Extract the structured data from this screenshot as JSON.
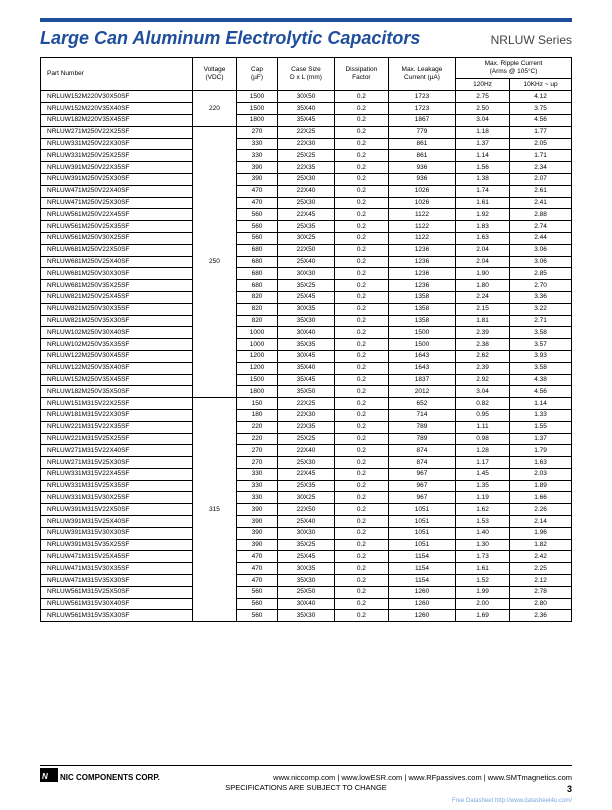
{
  "header": {
    "title": "Large Can Aluminum Electrolytic Capacitors",
    "series": "NRLUW Series"
  },
  "table": {
    "headers": {
      "part": "Part Number",
      "volt": "Voltage\n(VDC)",
      "cap": "Cap\n(µF)",
      "case": "Case Size\nD x L (mm)",
      "df": "Dissipation\nFactor",
      "leak": "Max. Leakage\nCurrent (µA)",
      "ripple": "Max. Ripple Current\n(Arms @ 105°C)",
      "r1": "120Hz",
      "r2": "10KHz ~ up"
    },
    "groups": [
      {
        "voltage": "220",
        "rows": [
          [
            "NRLUW152M220V30X50SF",
            "1500",
            "30X50",
            "0.2",
            "1723",
            "2.75",
            "4.12"
          ],
          [
            "NRLUW152M220V35X40SF",
            "1500",
            "35X40",
            "0.2",
            "1723",
            "2.50",
            "3.75"
          ],
          [
            "NRLUW182M220V35X45SF",
            "1800",
            "35X45",
            "0.2",
            "1867",
            "3.04",
            "4.56"
          ]
        ]
      },
      {
        "voltage": "250",
        "rows": [
          [
            "NRLUW271M250V22X25SF",
            "270",
            "22X25",
            "0.2",
            "779",
            "1.18",
            "1.77"
          ],
          [
            "NRLUW331M250V22X30SF",
            "330",
            "22X30",
            "0.2",
            "861",
            "1.37",
            "2.05"
          ],
          [
            "NRLUW331M250V25X25SF",
            "330",
            "25X25",
            "0.2",
            "861",
            "1.14",
            "1.71"
          ],
          [
            "NRLUW391M250V22X35SF",
            "390",
            "22X35",
            "0.2",
            "936",
            "1.56",
            "2.34"
          ],
          [
            "NRLUW391M250V25X30SF",
            "390",
            "25X30",
            "0.2",
            "936",
            "1.38",
            "2.07"
          ],
          [
            "NRLUW471M250V22X40SF",
            "470",
            "22X40",
            "0.2",
            "1026",
            "1.74",
            "2.61"
          ],
          [
            "NRLUW471M250V25X30SF",
            "470",
            "25X30",
            "0.2",
            "1026",
            "1.61",
            "2.41"
          ],
          [
            "NRLUW561M250V22X45SF",
            "560",
            "22X45",
            "0.2",
            "1122",
            "1.92",
            "2.88"
          ],
          [
            "NRLUW561M250V25X35SF",
            "560",
            "25X35",
            "0.2",
            "1122",
            "1.83",
            "2.74"
          ],
          [
            "NRLUW561M250V30X25SF",
            "560",
            "30X25",
            "0.2",
            "1122",
            "1.63",
            "2.44"
          ],
          [
            "NRLUW681M250V22X50SF",
            "680",
            "22X50",
            "0.2",
            "1236",
            "2.04",
            "3.06"
          ],
          [
            "NRLUW681M250V25X40SF",
            "680",
            "25X40",
            "0.2",
            "1236",
            "2.04",
            "3.06"
          ],
          [
            "NRLUW681M250V30X30SF",
            "680",
            "30X30",
            "0.2",
            "1236",
            "1.90",
            "2.85"
          ],
          [
            "NRLUW681M250V35X25SF",
            "680",
            "35X25",
            "0.2",
            "1236",
            "1.80",
            "2.70"
          ],
          [
            "NRLUW821M250V25X45SF",
            "820",
            "25X45",
            "0.2",
            "1358",
            "2.24",
            "3.36"
          ],
          [
            "NRLUW821M250V30X35SF",
            "820",
            "30X35",
            "0.2",
            "1358",
            "2.15",
            "3.22"
          ],
          [
            "NRLUW821M250V35X30SF",
            "820",
            "35X30",
            "0.2",
            "1358",
            "1.81",
            "2.71"
          ],
          [
            "NRLUW102M250V30X40SF",
            "1000",
            "30X40",
            "0.2",
            "1500",
            "2.39",
            "3.58"
          ],
          [
            "NRLUW102M250V35X35SF",
            "1000",
            "35X35",
            "0.2",
            "1500",
            "2.38",
            "3.57"
          ],
          [
            "NRLUW122M250V30X45SF",
            "1200",
            "30X45",
            "0.2",
            "1643",
            "2.62",
            "3.93"
          ],
          [
            "NRLUW122M250V35X40SF",
            "1200",
            "35X40",
            "0.2",
            "1643",
            "2.39",
            "3.58"
          ],
          [
            "NRLUW152M250V35X45SF",
            "1500",
            "35X45",
            "0.2",
            "1837",
            "2.92",
            "4.38"
          ],
          [
            "NRLUW182M250V35X50SF",
            "1800",
            "35X50",
            "0.2",
            "2012",
            "3.04",
            "4.56"
          ]
        ]
      },
      {
        "voltage": "315",
        "rows": [
          [
            "NRLUW151M315V22X25SF",
            "150",
            "22X25",
            "0.2",
            "652",
            "0.82",
            "1.14"
          ],
          [
            "NRLUW181M315V22X30SF",
            "180",
            "22X30",
            "0.2",
            "714",
            "0.95",
            "1.33"
          ],
          [
            "NRLUW221M315V22X35SF",
            "220",
            "22X35",
            "0.2",
            "789",
            "1.11",
            "1.55"
          ],
          [
            "NRLUW221M315V25X25SF",
            "220",
            "25X25",
            "0.2",
            "789",
            "0.98",
            "1.37"
          ],
          [
            "NRLUW271M315V22X40SF",
            "270",
            "22X40",
            "0.2",
            "874",
            "1.28",
            "1.79"
          ],
          [
            "NRLUW271M315V25X30SF",
            "270",
            "25X30",
            "0.2",
            "874",
            "1.17",
            "1.63"
          ],
          [
            "NRLUW331M315V22X45SF",
            "330",
            "22X45",
            "0.2",
            "967",
            "1.45",
            "2.03"
          ],
          [
            "NRLUW331M315V25X35SF",
            "330",
            "25X35",
            "0.2",
            "967",
            "1.35",
            "1.89"
          ],
          [
            "NRLUW331M315V30X25SF",
            "330",
            "30X25",
            "0.2",
            "967",
            "1.19",
            "1.66"
          ],
          [
            "NRLUW391M315V22X50SF",
            "390",
            "22X50",
            "0.2",
            "1051",
            "1.62",
            "2.26"
          ],
          [
            "NRLUW391M315V25X40SF",
            "390",
            "25X40",
            "0.2",
            "1051",
            "1.53",
            "2.14"
          ],
          [
            "NRLUW391M315V30X30SF",
            "390",
            "30X30",
            "0.2",
            "1051",
            "1.40",
            "1.96"
          ],
          [
            "NRLUW391M315V35X25SF",
            "390",
            "35X25",
            "0.2",
            "1051",
            "1.30",
            "1.82"
          ],
          [
            "NRLUW471M315V25X45SF",
            "470",
            "25X45",
            "0.2",
            "1154",
            "1.73",
            "2.42"
          ],
          [
            "NRLUW471M315V30X35SF",
            "470",
            "30X35",
            "0.2",
            "1154",
            "1.61",
            "2.25"
          ],
          [
            "NRLUW471M315V35X30SF",
            "470",
            "35X30",
            "0.2",
            "1154",
            "1.52",
            "2.12"
          ],
          [
            "NRLUW561M315V25X50SF",
            "560",
            "25X50",
            "0.2",
            "1260",
            "1.99",
            "2.78"
          ],
          [
            "NRLUW561M315V30X40SF",
            "560",
            "30X40",
            "0.2",
            "1260",
            "2.00",
            "2.80"
          ],
          [
            "NRLUW561M315V35X30SF",
            "560",
            "35X30",
            "0.2",
            "1260",
            "1.69",
            "2.36"
          ]
        ]
      }
    ]
  },
  "footer": {
    "corp": "NIC COMPONENTS CORP.",
    "links": "www.niccomp.com   |   www.lowESR.com   |   www.RFpassives.com   |   www.SMTmagnetics.com",
    "spec": "SPECIFICATIONS ARE SUBJECT TO CHANGE",
    "page": "3",
    "ds": "Free Datasheet http://www.datasheet4u.com/"
  }
}
